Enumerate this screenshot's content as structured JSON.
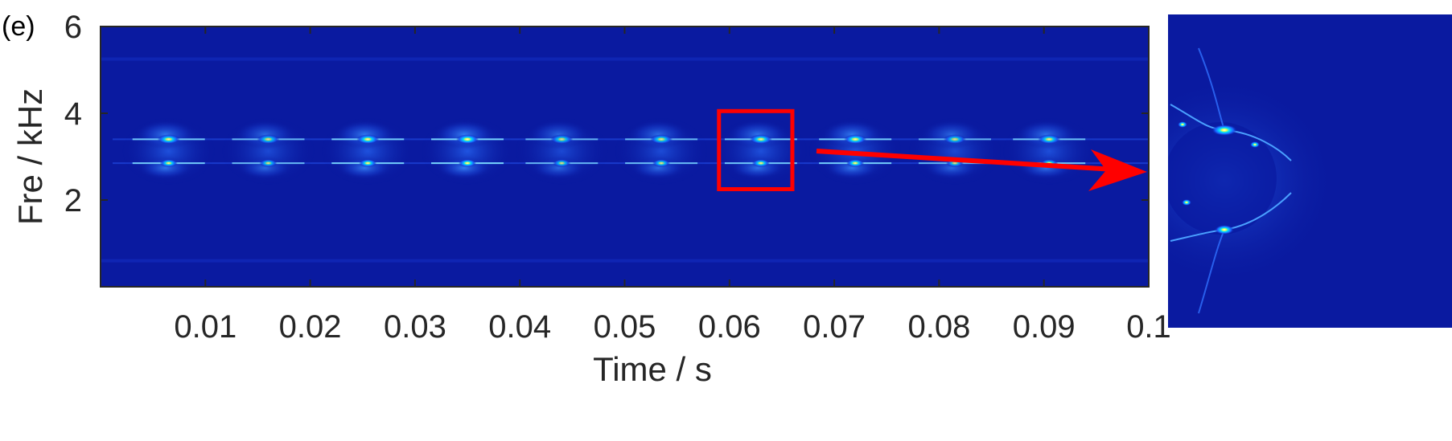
{
  "panel_label": "(e)",
  "colors": {
    "background": "#0a1aa0",
    "annotation": "#ff0000",
    "axis_text": "#262626"
  },
  "chart_data": {
    "type": "heatmap",
    "title": "",
    "xlabel": "Time / s",
    "ylabel": "Fre / kHz",
    "xlim": [
      0,
      0.1
    ],
    "ylim": [
      0,
      6
    ],
    "x_ticks": [
      0.01,
      0.02,
      0.03,
      0.04,
      0.05,
      0.06,
      0.07,
      0.08,
      0.09,
      0.1
    ],
    "x_tick_labels": [
      "0.01",
      "0.02",
      "0.03",
      "0.04",
      "0.05",
      "0.06",
      "0.07",
      "0.08",
      "0.09",
      "0.1"
    ],
    "y_ticks": [
      2,
      4,
      6
    ],
    "y_tick_labels": [
      "2",
      "4",
      "6"
    ],
    "colormap": "jet",
    "grid": false,
    "energy_bursts": [
      {
        "time": 0.0065,
        "upper_freq": 3.4,
        "lower_freq": 2.85,
        "intensity": 0.8
      },
      {
        "time": 0.016,
        "upper_freq": 3.4,
        "lower_freq": 2.85,
        "intensity": 0.55
      },
      {
        "time": 0.0255,
        "upper_freq": 3.4,
        "lower_freq": 2.85,
        "intensity": 0.85
      },
      {
        "time": 0.035,
        "upper_freq": 3.4,
        "lower_freq": 2.85,
        "intensity": 0.95
      },
      {
        "time": 0.044,
        "upper_freq": 3.4,
        "lower_freq": 2.85,
        "intensity": 0.5
      },
      {
        "time": 0.0535,
        "upper_freq": 3.4,
        "lower_freq": 2.85,
        "intensity": 0.6
      },
      {
        "time": 0.063,
        "upper_freq": 3.4,
        "lower_freq": 2.85,
        "intensity": 0.75
      },
      {
        "time": 0.072,
        "upper_freq": 3.4,
        "lower_freq": 2.85,
        "intensity": 0.85
      },
      {
        "time": 0.0815,
        "upper_freq": 3.4,
        "lower_freq": 2.85,
        "intensity": 0.5
      },
      {
        "time": 0.0905,
        "upper_freq": 3.4,
        "lower_freq": 2.85,
        "intensity": 0.7
      }
    ],
    "zoom_box": {
      "time_range": [
        0.059,
        0.066
      ],
      "freq_range": [
        2.25,
        4.05
      ]
    },
    "inset": {
      "description": "zoomed view of boxed region",
      "upper_freq": 3.4,
      "lower_freq": 2.85
    }
  }
}
